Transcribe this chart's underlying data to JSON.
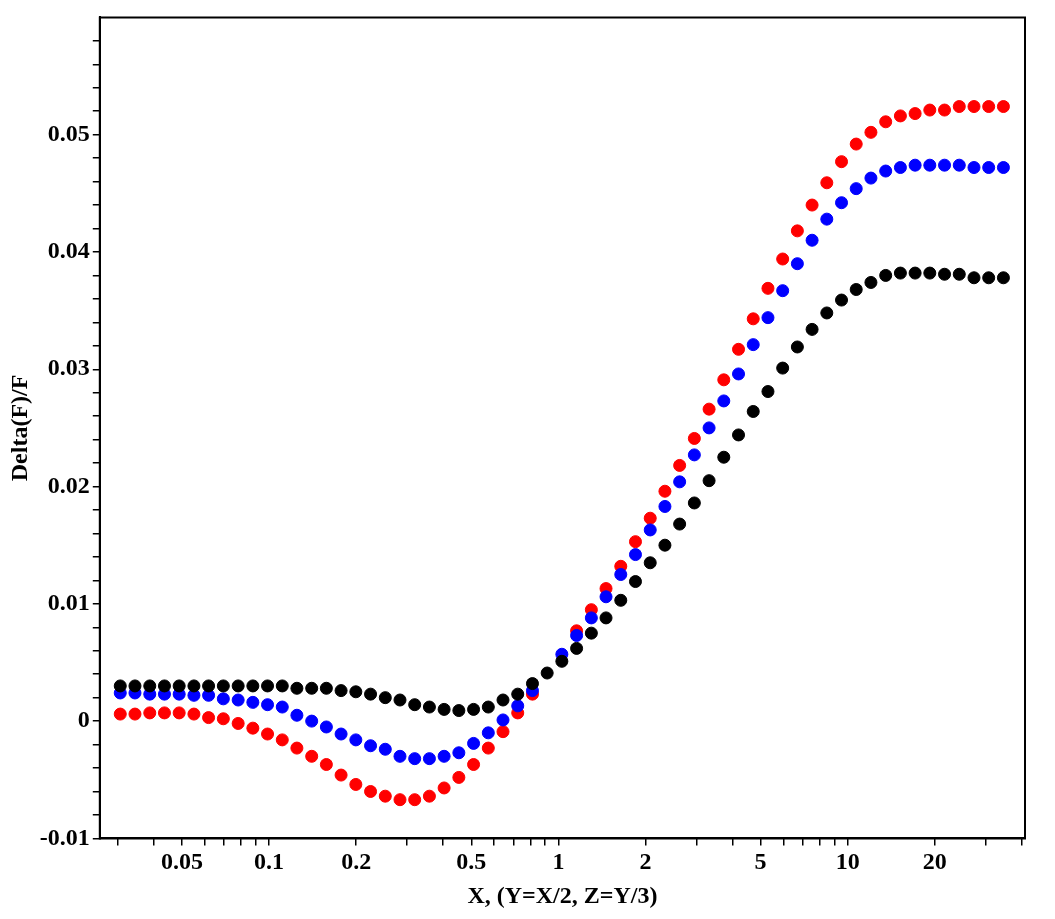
{
  "chart_data": {
    "type": "scatter",
    "xlabel": "X, (Y=X/2, Z=Y/3)",
    "ylabel": "Delta(F)/F",
    "log": "x",
    "grid": false,
    "legend": false,
    "marker": "circle",
    "xlim": [
      0.026,
      41
    ],
    "xticks": [
      {
        "value": 0.03,
        "label": null
      },
      {
        "value": 0.04,
        "label": null
      },
      0.05,
      {
        "value": 0.06,
        "label": null
      },
      {
        "value": 0.07,
        "label": null
      },
      {
        "value": 0.08,
        "label": null
      },
      {
        "value": 0.09,
        "label": null
      },
      0.1,
      0.2,
      {
        "value": 0.3,
        "label": null
      },
      {
        "value": 0.4,
        "label": null
      },
      0.5,
      {
        "value": 0.6,
        "label": null
      },
      {
        "value": 0.7,
        "label": null
      },
      {
        "value": 0.8,
        "label": null
      },
      {
        "value": 0.9,
        "label": null
      },
      1,
      2,
      {
        "value": 3,
        "label": null
      },
      {
        "value": 4,
        "label": null
      },
      5,
      {
        "value": 6,
        "label": null
      },
      {
        "value": 7,
        "label": null
      },
      {
        "value": 8,
        "label": null
      },
      {
        "value": 9,
        "label": null
      },
      10,
      20,
      {
        "value": 30,
        "label": null
      },
      {
        "value": 40,
        "label": null
      }
    ],
    "ylim": [
      -0.01,
      0.06
    ],
    "yticks": [
      -0.01,
      {
        "value": -0.008,
        "label": null
      },
      {
        "value": -0.006,
        "label": null
      },
      {
        "value": -0.004,
        "label": null
      },
      {
        "value": -0.002,
        "label": null
      },
      0,
      {
        "value": 0.002,
        "label": null
      },
      {
        "value": 0.004,
        "label": null
      },
      {
        "value": 0.006,
        "label": null
      },
      {
        "value": 0.008,
        "label": null
      },
      0.01,
      {
        "value": 0.012,
        "label": null
      },
      {
        "value": 0.014,
        "label": null
      },
      {
        "value": 0.016,
        "label": null
      },
      {
        "value": 0.018,
        "label": null
      },
      0.02,
      {
        "value": 0.022,
        "label": null
      },
      {
        "value": 0.024,
        "label": null
      },
      {
        "value": 0.026,
        "label": null
      },
      {
        "value": 0.028,
        "label": null
      },
      0.03,
      {
        "value": 0.032,
        "label": null
      },
      {
        "value": 0.034,
        "label": null
      },
      {
        "value": 0.036,
        "label": null
      },
      {
        "value": 0.038,
        "label": null
      },
      0.04,
      {
        "value": 0.042,
        "label": null
      },
      {
        "value": 0.044,
        "label": null
      },
      {
        "value": 0.046,
        "label": null
      },
      {
        "value": 0.048,
        "label": null
      },
      0.05,
      {
        "value": 0.052,
        "label": null
      },
      {
        "value": 0.054,
        "label": null
      },
      {
        "value": 0.056,
        "label": null
      },
      {
        "value": 0.058,
        "label": null
      }
    ],
    "x": [
      0.0306,
      0.0344,
      0.0387,
      0.0435,
      0.0489,
      0.055,
      0.0618,
      0.0695,
      0.0782,
      0.0879,
      0.0988,
      0.1111,
      0.1248,
      0.1404,
      0.1578,
      0.1774,
      0.1995,
      0.2243,
      0.2522,
      0.2835,
      0.3187,
      0.3583,
      0.4028,
      0.4529,
      0.5092,
      0.5725,
      0.6436,
      0.7236,
      0.8136,
      0.9146,
      1.028,
      1.156,
      1.3,
      1.461,
      1.643,
      1.847,
      2.077,
      2.335,
      2.625,
      2.951,
      3.318,
      3.73,
      4.194,
      4.715,
      5.301,
      5.96,
      6.699,
      7.532,
      8.468,
      9.52,
      10.7,
      12.03,
      13.53,
      15.21,
      17.1,
      19.22,
      21.61,
      24.3,
      27.32,
      30.71,
      34.53
    ],
    "series": [
      {
        "color": "#000000",
        "values": [
          0.003,
          0.003,
          0.003,
          0.003,
          0.003,
          0.003,
          0.003,
          0.003,
          0.003,
          0.003,
          0.003,
          0.003,
          0.0028,
          0.0028,
          0.0028,
          0.0026,
          0.0025,
          0.0023,
          0.002,
          0.0018,
          0.0014,
          0.0012,
          0.001,
          0.0009,
          0.001,
          0.0012,
          0.0018,
          0.0023,
          0.0032,
          0.0041,
          0.0051,
          0.0062,
          0.0075,
          0.0088,
          0.0103,
          0.0119,
          0.0135,
          0.015,
          0.0168,
          0.0186,
          0.0205,
          0.0225,
          0.0244,
          0.0264,
          0.0281,
          0.0301,
          0.0319,
          0.0334,
          0.0348,
          0.0359,
          0.0368,
          0.0374,
          0.038,
          0.0382,
          0.0382,
          0.0382,
          0.0381,
          0.0381,
          0.0378,
          0.0378,
          0.0378
        ]
      },
      {
        "color": "#0000ff",
        "values": [
          0.0024,
          0.0024,
          0.0023,
          0.0023,
          0.0023,
          0.0022,
          0.0022,
          0.0019,
          0.0018,
          0.0016,
          0.0014,
          0.0012,
          0.0005,
          0.0,
          -0.0005,
          -0.0011,
          -0.0016,
          -0.0021,
          -0.0024,
          -0.003,
          -0.0032,
          -0.0032,
          -0.003,
          -0.0027,
          -0.0019,
          -0.001,
          0.0001,
          0.0013,
          0.0026,
          null,
          0.0057,
          0.0073,
          0.0088,
          0.0106,
          0.0125,
          0.0142,
          0.0163,
          0.0183,
          0.0204,
          0.0227,
          0.025,
          0.0273,
          0.0296,
          0.0321,
          0.0344,
          0.0367,
          0.039,
          0.041,
          0.0428,
          0.0442,
          0.0454,
          0.0463,
          0.0469,
          0.0472,
          0.0474,
          0.0474,
          0.0474,
          0.0474,
          0.0472,
          0.0472,
          0.0472
        ]
      },
      {
        "color": "#ff0000",
        "values": [
          0.0006,
          0.0006,
          0.0007,
          0.0007,
          0.0007,
          0.0006,
          0.0003,
          0.0002,
          -0.0002,
          -0.0006,
          -0.0011,
          -0.0016,
          -0.0023,
          -0.003,
          -0.0037,
          -0.0046,
          -0.0054,
          -0.006,
          -0.0064,
          -0.0067,
          -0.0067,
          -0.0064,
          -0.0057,
          -0.0048,
          -0.0037,
          -0.0023,
          -0.0009,
          0.0007,
          0.0023,
          null,
          null,
          0.0077,
          0.0095,
          0.0113,
          0.0132,
          0.0153,
          0.0173,
          0.0196,
          0.0218,
          0.0241,
          0.0266,
          0.0291,
          0.0317,
          0.0343,
          0.0369,
          0.0394,
          0.0418,
          0.044,
          0.0459,
          0.0477,
          0.0492,
          0.0502,
          0.0511,
          0.0516,
          0.0518,
          0.0521,
          0.0521,
          0.0524,
          0.0524,
          0.0524,
          0.0524
        ]
      }
    ]
  }
}
